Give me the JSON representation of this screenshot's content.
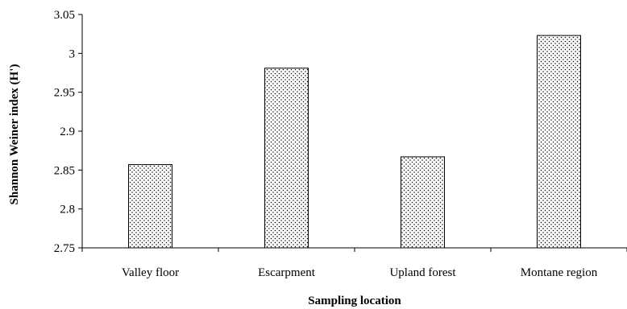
{
  "chart_data": {
    "type": "bar",
    "categories": [
      "Valley floor",
      "Escarpment",
      "Upland forest",
      "Montane region"
    ],
    "values": [
      2.857,
      2.981,
      2.867,
      3.023
    ],
    "xlabel": "Sampling location",
    "ylabel": "Shannon Weiner index (H')",
    "ylim": [
      2.75,
      3.05
    ],
    "yticks": [
      "2.75",
      "2.8",
      "2.85",
      "2.9",
      "2.95",
      "3",
      "3.05"
    ],
    "grid": false,
    "legend": "none",
    "bar_fill": "dotted pattern",
    "colors": {
      "bar_dots": "#000000",
      "bar_background": "#ffffff",
      "axis": "#000000"
    }
  }
}
